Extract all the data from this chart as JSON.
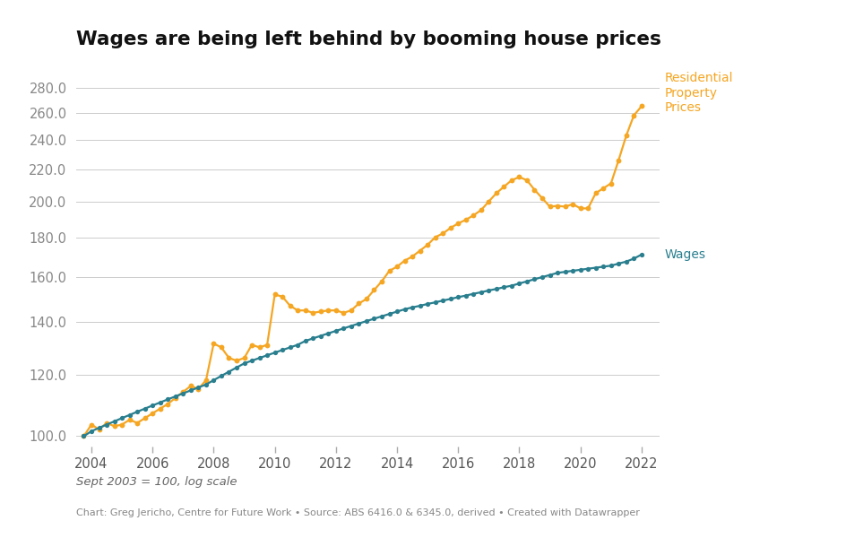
{
  "title": "Wages are being left behind by booming house prices",
  "subtitle": "Sept 2003 = 100, log scale",
  "footer": "Chart: Greg Jericho, Centre for Future Work • Source: ABS 6416.0 & 6345.0, derived • Created with Datawrapper",
  "yticks": [
    100.0,
    120.0,
    140.0,
    160.0,
    180.0,
    200.0,
    220.0,
    240.0,
    260.0,
    280.0
  ],
  "xticks": [
    2004,
    2006,
    2008,
    2010,
    2012,
    2014,
    2016,
    2018,
    2020,
    2022
  ],
  "xlim": [
    2003.5,
    2022.6
  ],
  "ylim_log": [
    97,
    295
  ],
  "bg_color": "#ffffff",
  "grid_color": "#cccccc",
  "property_color": "#f5a623",
  "wages_color": "#2a7f8f",
  "property_label": "Residential\nProperty\nPrices",
  "wages_label": "Wages",
  "property_prices": [
    [
      2003.75,
      100.0
    ],
    [
      2004.0,
      103.5
    ],
    [
      2004.25,
      102.0
    ],
    [
      2004.5,
      104.0
    ],
    [
      2004.75,
      103.0
    ],
    [
      2005.0,
      103.5
    ],
    [
      2005.25,
      105.0
    ],
    [
      2005.5,
      104.0
    ],
    [
      2005.75,
      105.5
    ],
    [
      2006.0,
      107.0
    ],
    [
      2006.25,
      108.5
    ],
    [
      2006.5,
      110.0
    ],
    [
      2006.75,
      112.0
    ],
    [
      2007.0,
      114.0
    ],
    [
      2007.25,
      116.0
    ],
    [
      2007.5,
      115.0
    ],
    [
      2007.75,
      118.0
    ],
    [
      2008.0,
      131.5
    ],
    [
      2008.25,
      130.0
    ],
    [
      2008.5,
      126.0
    ],
    [
      2008.75,
      125.0
    ],
    [
      2009.0,
      126.0
    ],
    [
      2009.25,
      131.0
    ],
    [
      2009.5,
      130.0
    ],
    [
      2009.75,
      131.0
    ],
    [
      2010.0,
      152.0
    ],
    [
      2010.25,
      151.0
    ],
    [
      2010.5,
      147.0
    ],
    [
      2010.75,
      145.0
    ],
    [
      2011.0,
      145.0
    ],
    [
      2011.25,
      144.0
    ],
    [
      2011.5,
      144.5
    ],
    [
      2011.75,
      145.0
    ],
    [
      2012.0,
      145.0
    ],
    [
      2012.25,
      144.0
    ],
    [
      2012.5,
      145.0
    ],
    [
      2012.75,
      148.0
    ],
    [
      2013.0,
      150.0
    ],
    [
      2013.25,
      154.0
    ],
    [
      2013.5,
      158.0
    ],
    [
      2013.75,
      163.0
    ],
    [
      2014.0,
      165.0
    ],
    [
      2014.25,
      168.0
    ],
    [
      2014.5,
      170.0
    ],
    [
      2014.75,
      173.0
    ],
    [
      2015.0,
      176.0
    ],
    [
      2015.25,
      180.0
    ],
    [
      2015.5,
      182.0
    ],
    [
      2015.75,
      185.0
    ],
    [
      2016.0,
      187.5
    ],
    [
      2016.25,
      189.5
    ],
    [
      2016.5,
      192.0
    ],
    [
      2016.75,
      195.0
    ],
    [
      2017.0,
      200.0
    ],
    [
      2017.25,
      205.0
    ],
    [
      2017.5,
      209.0
    ],
    [
      2017.75,
      213.0
    ],
    [
      2018.0,
      215.0
    ],
    [
      2018.25,
      213.0
    ],
    [
      2018.5,
      207.0
    ],
    [
      2018.75,
      202.0
    ],
    [
      2019.0,
      197.0
    ],
    [
      2019.25,
      197.5
    ],
    [
      2019.5,
      197.0
    ],
    [
      2019.75,
      198.5
    ],
    [
      2020.0,
      196.0
    ],
    [
      2020.25,
      196.0
    ],
    [
      2020.5,
      205.0
    ],
    [
      2020.75,
      208.0
    ],
    [
      2021.0,
      211.0
    ],
    [
      2021.25,
      226.0
    ],
    [
      2021.5,
      243.0
    ],
    [
      2021.75,
      258.0
    ],
    [
      2022.0,
      265.0
    ]
  ],
  "wages": [
    [
      2003.75,
      100.0
    ],
    [
      2004.0,
      101.5
    ],
    [
      2004.25,
      102.5
    ],
    [
      2004.5,
      103.5
    ],
    [
      2004.75,
      104.5
    ],
    [
      2005.0,
      105.5
    ],
    [
      2005.25,
      106.5
    ],
    [
      2005.5,
      107.5
    ],
    [
      2005.75,
      108.5
    ],
    [
      2006.0,
      109.5
    ],
    [
      2006.25,
      110.5
    ],
    [
      2006.5,
      111.5
    ],
    [
      2006.75,
      112.5
    ],
    [
      2007.0,
      113.5
    ],
    [
      2007.25,
      114.5
    ],
    [
      2007.5,
      115.5
    ],
    [
      2007.75,
      116.5
    ],
    [
      2008.0,
      118.0
    ],
    [
      2008.25,
      119.5
    ],
    [
      2008.5,
      121.0
    ],
    [
      2008.75,
      122.5
    ],
    [
      2009.0,
      124.0
    ],
    [
      2009.25,
      125.0
    ],
    [
      2009.5,
      126.0
    ],
    [
      2009.75,
      127.0
    ],
    [
      2010.0,
      128.0
    ],
    [
      2010.25,
      129.0
    ],
    [
      2010.5,
      130.0
    ],
    [
      2010.75,
      131.0
    ],
    [
      2011.0,
      132.5
    ],
    [
      2011.25,
      133.5
    ],
    [
      2011.5,
      134.5
    ],
    [
      2011.75,
      135.5
    ],
    [
      2012.0,
      136.5
    ],
    [
      2012.25,
      137.5
    ],
    [
      2012.5,
      138.5
    ],
    [
      2012.75,
      139.5
    ],
    [
      2013.0,
      140.5
    ],
    [
      2013.25,
      141.5
    ],
    [
      2013.5,
      142.5
    ],
    [
      2013.75,
      143.5
    ],
    [
      2014.0,
      144.5
    ],
    [
      2014.25,
      145.5
    ],
    [
      2014.5,
      146.3
    ],
    [
      2014.75,
      147.0
    ],
    [
      2015.0,
      147.8
    ],
    [
      2015.25,
      148.5
    ],
    [
      2015.5,
      149.3
    ],
    [
      2015.75,
      150.0
    ],
    [
      2016.0,
      150.8
    ],
    [
      2016.25,
      151.5
    ],
    [
      2016.5,
      152.3
    ],
    [
      2016.75,
      153.0
    ],
    [
      2017.0,
      153.8
    ],
    [
      2017.25,
      154.5
    ],
    [
      2017.5,
      155.3
    ],
    [
      2017.75,
      156.0
    ],
    [
      2018.0,
      157.0
    ],
    [
      2018.25,
      158.0
    ],
    [
      2018.5,
      159.0
    ],
    [
      2018.75,
      160.0
    ],
    [
      2019.0,
      161.0
    ],
    [
      2019.25,
      162.0
    ],
    [
      2019.5,
      162.5
    ],
    [
      2019.75,
      163.0
    ],
    [
      2020.0,
      163.5
    ],
    [
      2020.25,
      164.0
    ],
    [
      2020.5,
      164.5
    ],
    [
      2020.75,
      165.0
    ],
    [
      2021.0,
      165.5
    ],
    [
      2021.25,
      166.5
    ],
    [
      2021.5,
      167.5
    ],
    [
      2021.75,
      169.0
    ],
    [
      2022.0,
      171.0
    ]
  ]
}
